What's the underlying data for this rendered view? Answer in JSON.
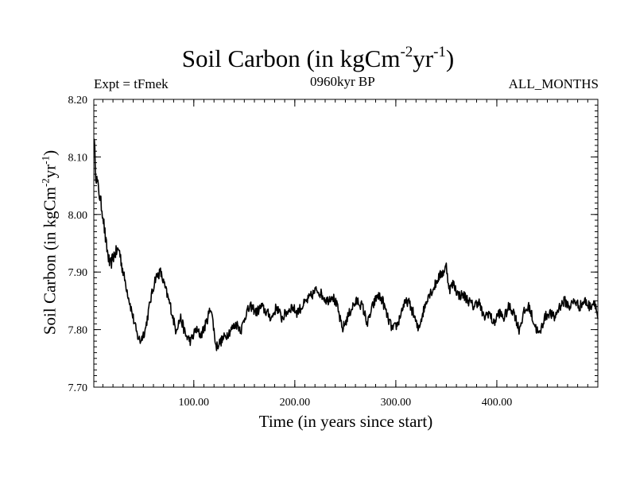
{
  "header": {
    "title_main": "Soil Carbon (in kgCm",
    "title_sup1": "-2",
    "title_mid": "yr",
    "title_sup2": "-1",
    "title_end": ")",
    "expt": "Expt = tFmek",
    "period": "0960kyr BP",
    "months": "ALL_MONTHS"
  },
  "axes": {
    "ylabel_main": "Soil Carbon (in kgCm",
    "ylabel_sup1": "-2",
    "ylabel_mid": "yr",
    "ylabel_sup2": "-1",
    "ylabel_end": ")",
    "xlabel": "Time (in years since start)"
  },
  "chart_data": {
    "type": "line",
    "title": "Soil Carbon (in kgCm-2yr-1)",
    "xlabel": "Time (in years since start)",
    "ylabel": "Soil Carbon (in kgCm-2yr-1)",
    "xlim": [
      1,
      500
    ],
    "ylim": [
      7.7,
      8.2
    ],
    "x_ticks": [
      100,
      200,
      300,
      400
    ],
    "x_tick_labels": [
      "100.00",
      "200.00",
      "300.00",
      "400.00"
    ],
    "y_ticks": [
      7.7,
      7.8,
      7.9,
      8.0,
      8.1,
      8.2
    ],
    "y_tick_labels": [
      "7.70",
      "7.80",
      "7.90",
      "8.00",
      "8.10",
      "8.20"
    ],
    "line_color": "#000000",
    "series": [
      {
        "name": "Soil Carbon",
        "x": [
          1,
          3,
          6,
          10,
          13,
          17,
          21,
          26,
          30,
          35,
          40,
          44,
          47,
          52,
          57,
          62,
          67,
          72,
          77,
          82,
          87,
          92,
          97,
          102,
          107,
          112,
          117,
          122,
          127,
          132,
          137,
          142,
          147,
          152,
          157,
          162,
          167,
          172,
          177,
          182,
          187,
          192,
          197,
          202,
          207,
          212,
          217,
          222,
          227,
          232,
          237,
          242,
          247,
          252,
          257,
          262,
          267,
          272,
          277,
          282,
          287,
          292,
          297,
          302,
          307,
          312,
          317,
          322,
          327,
          332,
          337,
          342,
          347,
          350,
          353,
          357,
          362,
          367,
          372,
          377,
          382,
          387,
          392,
          397,
          402,
          407,
          412,
          417,
          422,
          427,
          432,
          437,
          442,
          447,
          452,
          457,
          462,
          467,
          472,
          477,
          482,
          487,
          492,
          497,
          500
        ],
        "values": [
          8.14,
          8.07,
          8.04,
          8.0,
          7.95,
          7.91,
          7.93,
          7.94,
          7.9,
          7.86,
          7.82,
          7.79,
          7.78,
          7.8,
          7.85,
          7.89,
          7.9,
          7.87,
          7.84,
          7.8,
          7.82,
          7.79,
          7.78,
          7.8,
          7.79,
          7.81,
          7.84,
          7.77,
          7.78,
          7.79,
          7.8,
          7.81,
          7.8,
          7.83,
          7.84,
          7.83,
          7.84,
          7.83,
          7.82,
          7.84,
          7.82,
          7.83,
          7.84,
          7.83,
          7.84,
          7.85,
          7.86,
          7.87,
          7.86,
          7.85,
          7.86,
          7.84,
          7.8,
          7.82,
          7.84,
          7.85,
          7.84,
          7.81,
          7.84,
          7.86,
          7.85,
          7.82,
          7.8,
          7.81,
          7.84,
          7.85,
          7.83,
          7.8,
          7.83,
          7.86,
          7.87,
          7.89,
          7.9,
          7.91,
          7.87,
          7.88,
          7.86,
          7.86,
          7.85,
          7.84,
          7.85,
          7.82,
          7.83,
          7.81,
          7.83,
          7.82,
          7.84,
          7.83,
          7.8,
          7.83,
          7.84,
          7.81,
          7.79,
          7.82,
          7.83,
          7.82,
          7.84,
          7.85,
          7.84,
          7.85,
          7.84,
          7.85,
          7.84,
          7.85,
          7.82
        ]
      }
    ]
  }
}
